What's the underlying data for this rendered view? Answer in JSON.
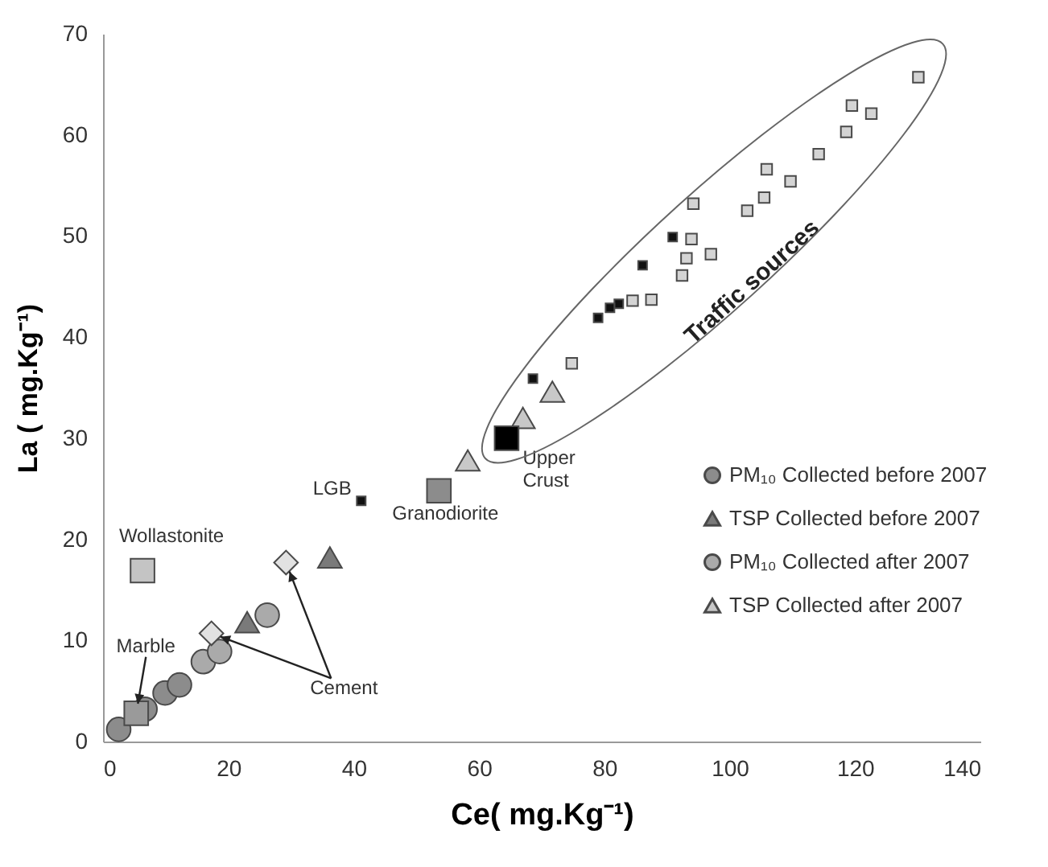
{
  "chart_data": {
    "type": "scatter",
    "xlabel": "Ce( mg.Kg⁻¹)",
    "ylabel": "La ( mg.Kg⁻¹)",
    "xlim": [
      0,
      140
    ],
    "xticks": [
      0,
      20,
      40,
      60,
      80,
      100,
      120,
      140
    ],
    "ylim": [
      0,
      70
    ],
    "yticks": [
      0,
      10,
      20,
      30,
      40,
      50,
      60,
      70
    ],
    "grid": false,
    "legend": "right",
    "annotations": [
      "Traffic sources",
      {
        "text": "Marble",
        "x": 5.3,
        "y": 2.8
      },
      {
        "text": "Cement",
        "x": 29.2,
        "y": 17.7
      }
    ],
    "series": [
      {
        "name": "PM₁₀ Collected before 2007",
        "color": "#8c8c8c",
        "marker": "circle",
        "x": [
          2.5,
          6.7,
          9.9,
          12.2
        ],
        "values": [
          1.2,
          3.2,
          4.8,
          5.6
        ]
      },
      {
        "name": "TSP Collected before 2007",
        "color": "#7a7a7a",
        "marker": "triangle",
        "x": [
          23,
          36.2
        ],
        "values": [
          11.8,
          18.2
        ]
      },
      {
        "name": "PM₁₀ Collected after 2007",
        "color": "#aaaaaa",
        "marker": "circle",
        "x": [
          16,
          18.6,
          26.2
        ],
        "values": [
          7.9,
          8.9,
          12.5
        ]
      },
      {
        "name": "TSP Collected after 2007",
        "color": "#c8c8c8",
        "marker": "triangle",
        "x": [
          58.2,
          67,
          71.7
        ],
        "values": [
          27.8,
          32,
          34.6
        ]
      },
      {
        "color": "#d4d4d4",
        "marker": "square",
        "x": [
          130.1,
          119.5,
          122.6,
          118.6,
          114.2,
          105.9,
          109.7,
          105.5,
          102.8,
          94.2,
          93.9,
          93.1,
          97,
          92.4,
          87.5,
          84.5,
          74.8
        ],
        "values": [
          65.7,
          62.9,
          62.1,
          60.3,
          58.1,
          56.6,
          55.4,
          53.8,
          52.5,
          53.2,
          49.7,
          47.8,
          48.2,
          46.1,
          43.7,
          43.6,
          37.4
        ]
      },
      {
        "color": "#111111",
        "marker": "square",
        "x": [
          90.9,
          86.1,
          82.3,
          80.9,
          79,
          68.6
        ],
        "values": [
          49.9,
          47.1,
          43.3,
          42.9,
          41.9,
          35.9
        ]
      },
      {
        "name": "Wollastonite",
        "color": "#c4c4c4",
        "marker": "square",
        "x": [
          6.3
        ],
        "values": [
          16.9
        ]
      },
      {
        "color": "#9a9a9a",
        "marker": "square",
        "x": [
          5.3
        ],
        "values": [
          2.8
        ]
      },
      {
        "name": "Granodiorite",
        "color": "#8c8c8c",
        "marker": "square",
        "x": [
          53.6
        ],
        "values": [
          24.8
        ]
      },
      {
        "name": "Upper Crust",
        "color": "#000000",
        "marker": "square",
        "x": [
          64.4
        ],
        "values": [
          30
        ]
      },
      {
        "name": "LGB",
        "color": "#111111",
        "marker": "square",
        "x": [
          41.2
        ],
        "values": [
          23.8
        ]
      },
      {
        "color": "#e2e2e2",
        "marker": "diamond",
        "x": [
          29.2,
          17.3
        ],
        "values": [
          17.7,
          10.7
        ]
      }
    ]
  }
}
